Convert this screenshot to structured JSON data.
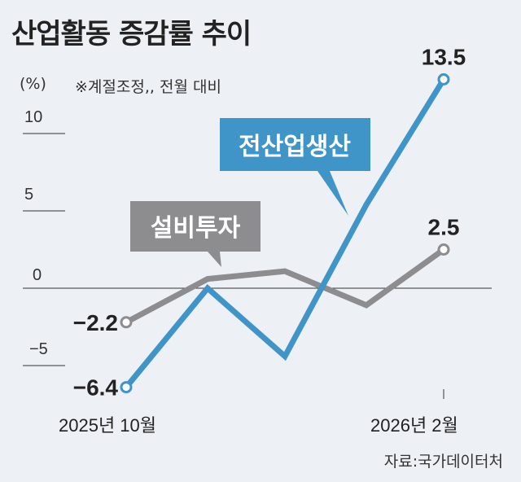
{
  "title": "산업활동 증감률 추이",
  "unit": "(%)",
  "note": "※계절조정,, 전월 대비",
  "source": "자료:국가데이터처",
  "colors": {
    "blue": "#3f94c8",
    "gray": "#8d8d90",
    "background": "#edf0f4"
  },
  "chart_data": {
    "type": "line",
    "title": "산업활동 증감률 추이",
    "ylabel": "(%)",
    "ylim": [
      -7,
      14
    ],
    "yticks": [
      10,
      5,
      0,
      -5
    ],
    "ytick_labels": [
      "10",
      "5",
      "0",
      "−5"
    ],
    "x": [
      "2025-10",
      "2025-11",
      "2025-12",
      "2026-01",
      "2026-02"
    ],
    "xtick_labels": [
      "2025년 10월",
      "2026년 2월"
    ],
    "series": [
      {
        "name": "전산업생산",
        "values": [
          -6.4,
          0.0,
          -4.4,
          5.4,
          13.5
        ],
        "start_label": "−6.4",
        "end_label": "13.5"
      },
      {
        "name": "설비투자",
        "values": [
          -2.2,
          0.6,
          1.1,
          -1.1,
          2.5
        ],
        "start_label": "−2.2",
        "end_label": "2.5"
      }
    ]
  }
}
